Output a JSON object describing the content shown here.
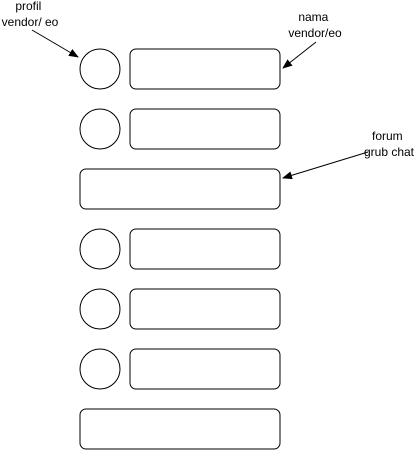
{
  "annotations": {
    "profil": {
      "lines": [
        "profil",
        "vendor/ eo"
      ]
    },
    "nama": {
      "lines": [
        "nama",
        "vendor/eo"
      ]
    },
    "forum": {
      "lines": [
        "forum",
        "grub chat"
      ]
    }
  },
  "rows": [
    {
      "type": "vendor",
      "avatar": "profile-circle",
      "name": ""
    },
    {
      "type": "vendor",
      "avatar": "profile-circle",
      "name": ""
    },
    {
      "type": "forum",
      "name": ""
    },
    {
      "type": "vendor",
      "avatar": "profile-circle",
      "name": ""
    },
    {
      "type": "vendor",
      "avatar": "profile-circle",
      "name": ""
    },
    {
      "type": "vendor",
      "avatar": "profile-circle",
      "name": ""
    },
    {
      "type": "forum",
      "name": ""
    }
  ],
  "colors": {
    "stroke": "#000000",
    "fill": "#ffffff"
  }
}
